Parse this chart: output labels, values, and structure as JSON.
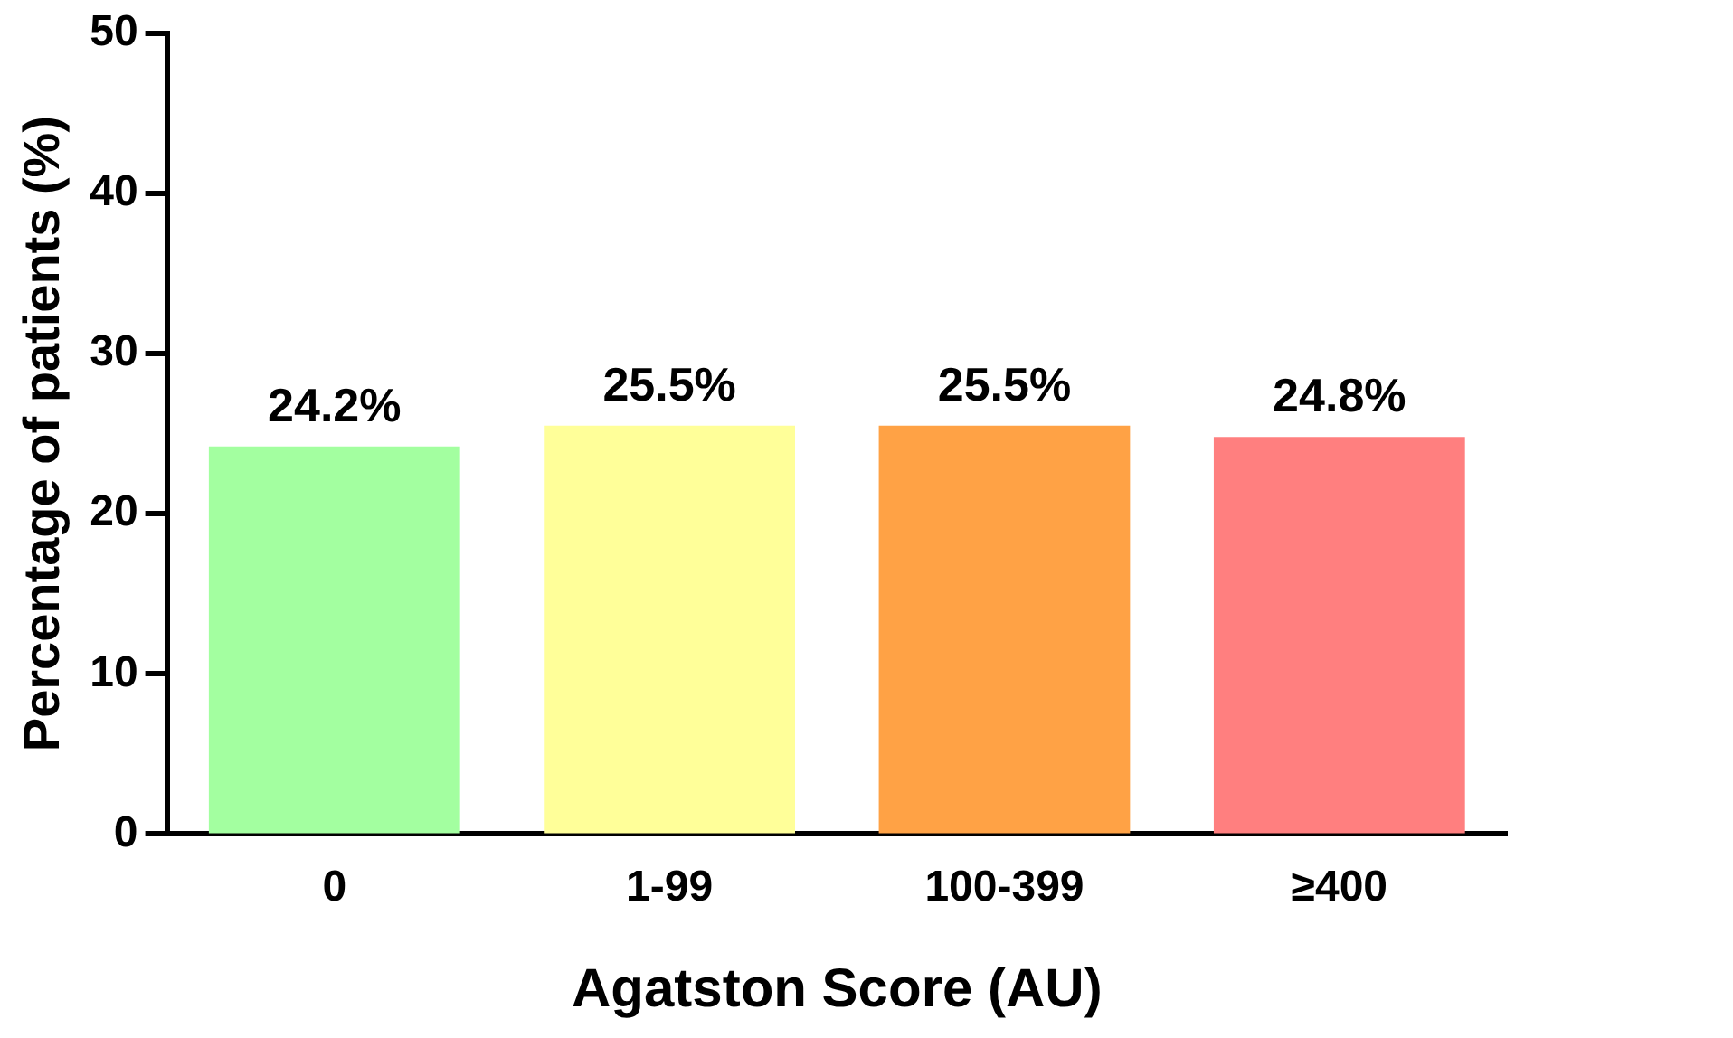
{
  "chart_data": {
    "type": "bar",
    "xlabel": "Agatston Score (AU)",
    "ylabel": "Percentage of patients (%)",
    "categories": [
      "0",
      "1-99",
      "100-399",
      "≥400"
    ],
    "values": [
      24.2,
      25.5,
      25.5,
      24.8
    ],
    "colors": [
      "#a3ffa0",
      "#ffff99",
      "#ffa245",
      "#ff7f7f"
    ],
    "value_labels": [
      "24.2%",
      "25.5%",
      "25.5%",
      "24.8%"
    ],
    "ylim": [
      0,
      50
    ],
    "yticks": [
      0,
      10,
      20,
      30,
      40,
      50
    ],
    "grid": false,
    "legend": false
  }
}
